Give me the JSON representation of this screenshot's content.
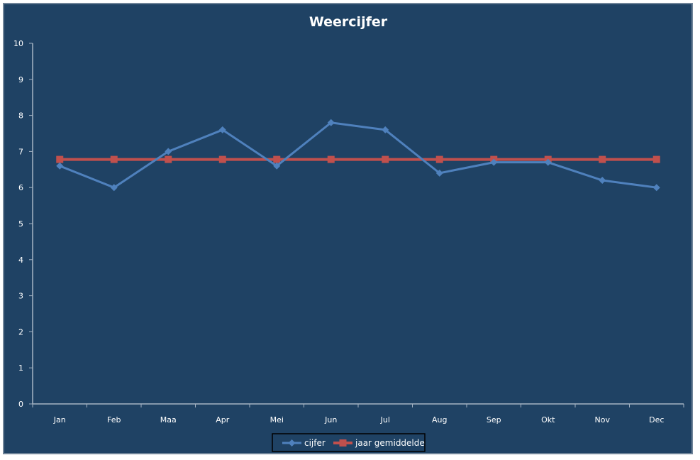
{
  "chart_data": {
    "type": "line",
    "title": "Weercijfer",
    "xlabel": "",
    "ylabel": "",
    "categories": [
      "Jan",
      "Feb",
      "Maa",
      "Apr",
      "Mei",
      "Jun",
      "Jul",
      "Aug",
      "Sep",
      "Okt",
      "Nov",
      "Dec"
    ],
    "ylim": [
      0,
      10
    ],
    "yticks": [
      0,
      1,
      2,
      3,
      4,
      5,
      6,
      7,
      8,
      9,
      10
    ],
    "grid": false,
    "legend_position": "bottom",
    "series": [
      {
        "name": "cijfer",
        "color": "#4f81bd",
        "marker": "diamond",
        "values": [
          6.6,
          6.0,
          7.0,
          7.6,
          6.6,
          7.8,
          7.6,
          6.4,
          6.7,
          6.7,
          6.2,
          6.0
        ]
      },
      {
        "name": "jaar gemiddelde",
        "color": "#c0504d",
        "marker": "square",
        "values": [
          6.78,
          6.78,
          6.78,
          6.78,
          6.78,
          6.78,
          6.78,
          6.78,
          6.78,
          6.78,
          6.78,
          6.78
        ]
      }
    ]
  }
}
